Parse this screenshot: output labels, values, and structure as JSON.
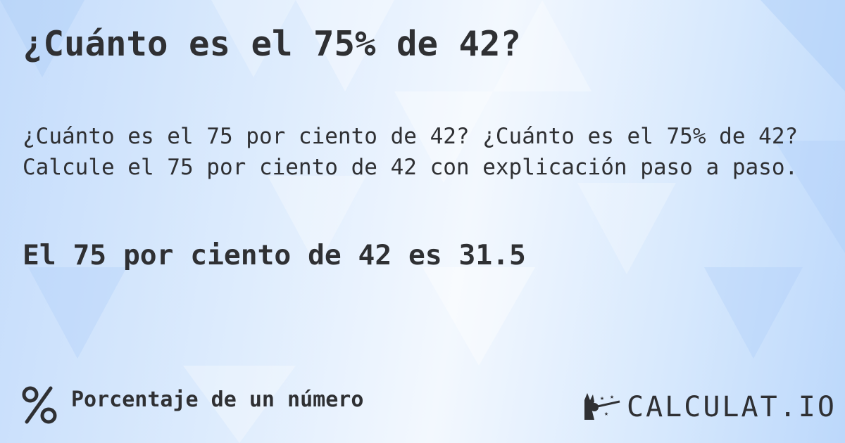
{
  "title": "¿Cuánto es el 75% de 42?",
  "description_line1": "¿Cuánto es el 75 por ciento de 42? ¿Cuánto es el 75% de 42?",
  "description_line2": "Calcule el 75 por ciento de 42 con explicación paso a paso.",
  "answer": "El 75 por ciento de 42 es 31.5",
  "footer": {
    "icon": "percent-icon",
    "label": "Porcentaje de un número"
  },
  "logo": {
    "text": "CALCULAT.IO",
    "icon": "magic-hand-wand-icon"
  },
  "colors": {
    "text": "#2f3033",
    "background": "#dcebfd"
  }
}
